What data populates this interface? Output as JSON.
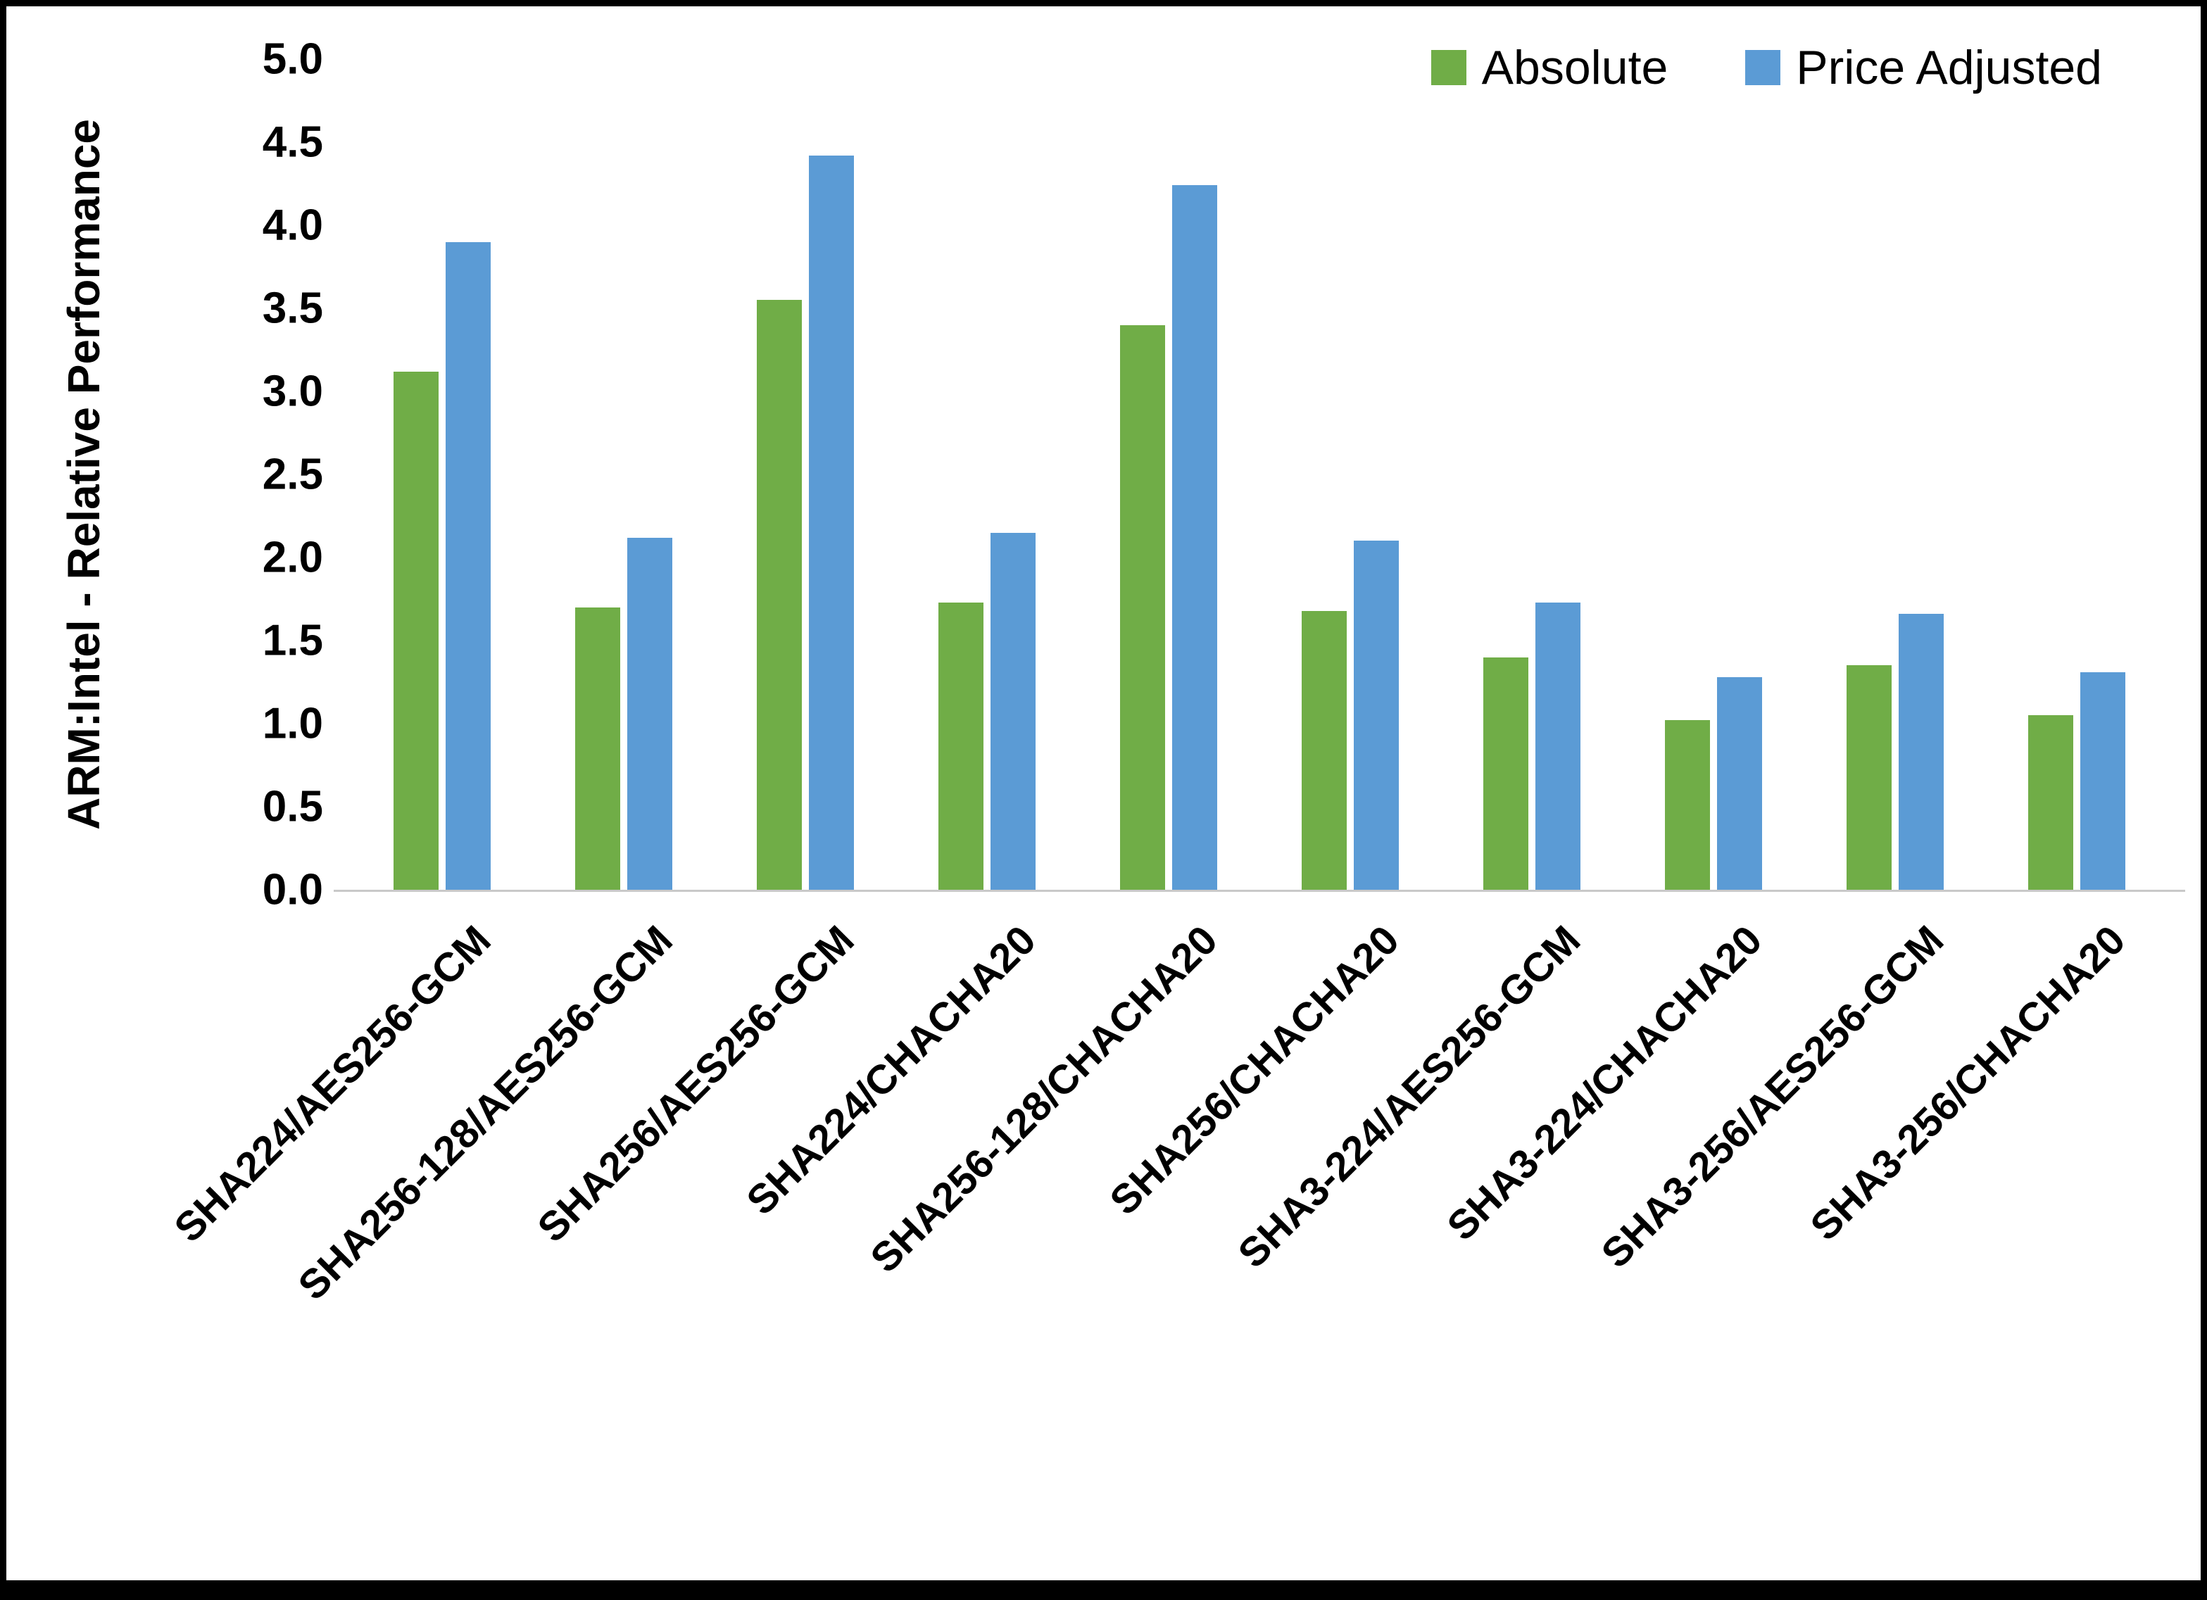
{
  "chart_data": {
    "type": "bar",
    "title": "",
    "xlabel": "",
    "ylabel": "ARM:Intel - Relative Performance",
    "ylim": [
      0,
      5
    ],
    "ytick_step": 0.5,
    "grid": false,
    "legend_position": "top-right",
    "categories": [
      "SHA224/AES256-GCM",
      "SHA256-128/AES256-GCM",
      "SHA256/AES256-GCM",
      "SHA224/CHACHA20",
      "SHA256-128/CHACHA20",
      "SHA256/CHACHA20",
      "SHA3-224/AES256-GCM",
      "SHA3-224/CHACHA20",
      "SHA3-256/AES256-GCM",
      "SHA3-256/CHACHA20"
    ],
    "series": [
      {
        "name": "Absolute",
        "color": "#70AD47",
        "values": [
          3.12,
          1.7,
          3.55,
          1.73,
          3.4,
          1.68,
          1.4,
          1.02,
          1.35,
          1.05
        ]
      },
      {
        "name": "Price Adjusted",
        "color": "#5B9BD5",
        "values": [
          3.9,
          2.12,
          4.42,
          2.15,
          4.24,
          2.1,
          1.73,
          1.28,
          1.66,
          1.31
        ]
      }
    ]
  }
}
